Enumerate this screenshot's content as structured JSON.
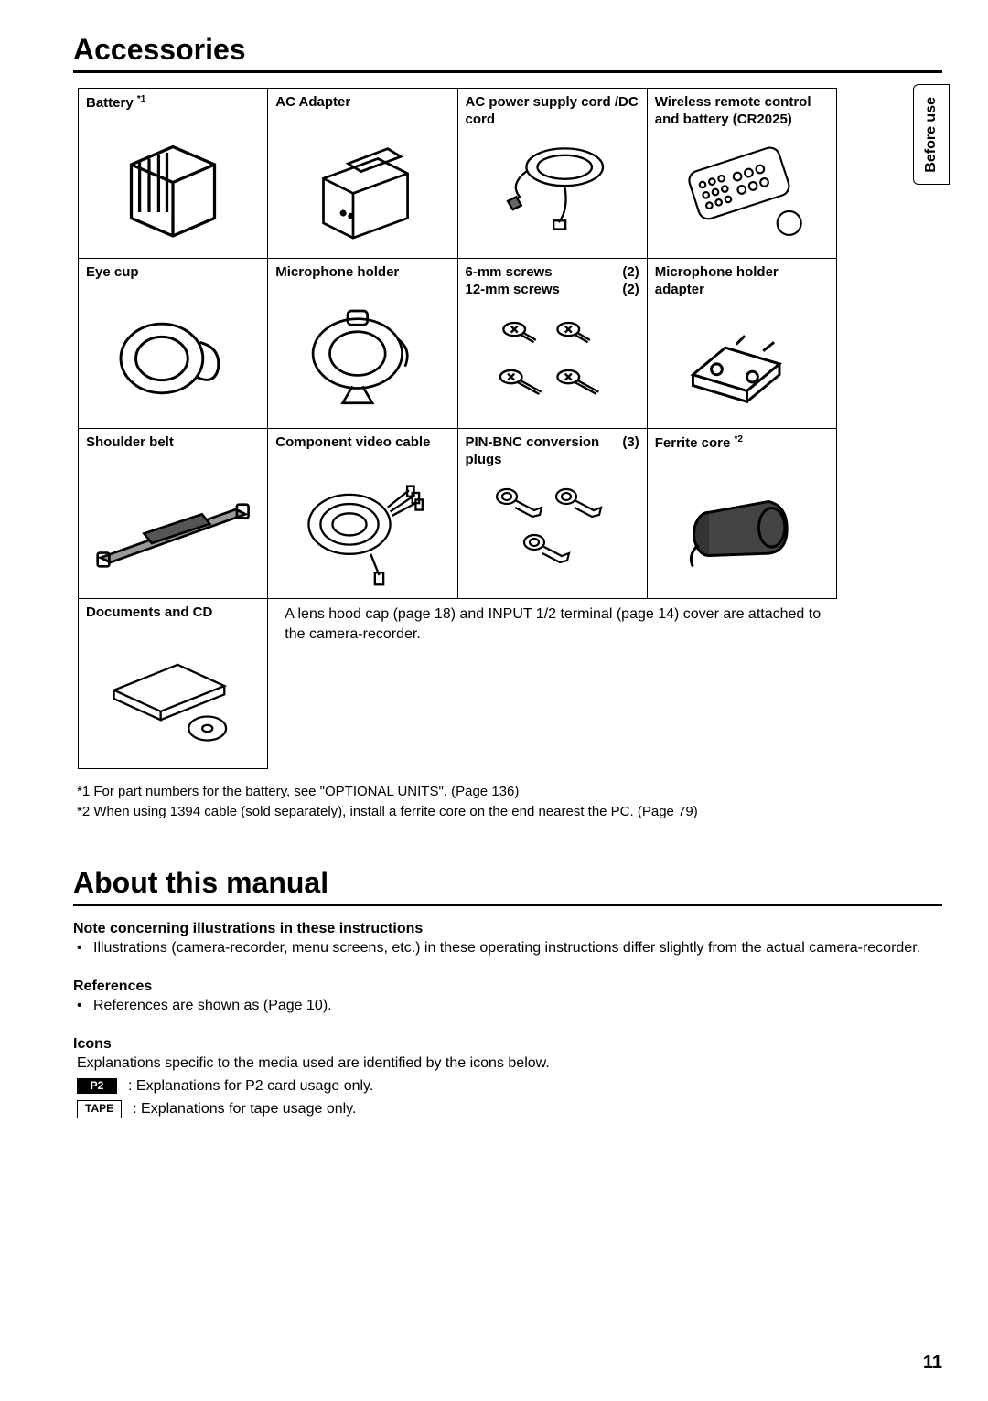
{
  "side_tab": "Before use",
  "section1_title": "Accessories",
  "grid": {
    "r1": [
      {
        "label_html": "Battery <sup>*1</sup>"
      },
      {
        "label_html": "AC Adapter"
      },
      {
        "label_html": "AC power supply cord /DC cord"
      },
      {
        "label_html": "Wireless remote control and battery (CR2025)"
      }
    ],
    "r2": [
      {
        "label_html": "Eye cup"
      },
      {
        "label_html": "Microphone holder"
      },
      {
        "label_html": "<div class='qty-row'><span>6-mm screws</span><span>(2)</span></div><div class='qty-row'><span>12-mm screws</span><span>(2)</span></div>"
      },
      {
        "label_html": "Microphone holder adapter"
      }
    ],
    "r3": [
      {
        "label_html": "Shoulder belt"
      },
      {
        "label_html": "Component video cable"
      },
      {
        "label_html": "<div class='qty-row'><span>PIN-BNC conversion plugs</span><span>(3)</span></div>"
      },
      {
        "label_html": "Ferrite core <sup>*2</sup>"
      }
    ],
    "r4_label": "Documents and CD",
    "r4_note": "A lens hood cap (page 18) and INPUT 1/2 terminal (page 14) cover are attached to the camera-recorder."
  },
  "footnotes": [
    "*1 For part numbers for the battery, see \"OPTIONAL UNITS\". (Page 136)",
    "*2 When using 1394 cable (sold separately), install a ferrite core on the end nearest the PC. (Page 79)"
  ],
  "section2_title": "About this manual",
  "about": {
    "sub1": "Note concerning illustrations in these instructions",
    "sub1_body": "Illustrations (camera-recorder, menu screens, etc.) in these operating instructions differ slightly from the actual camera-recorder.",
    "sub2": "References",
    "sub2_body": "References are shown as (Page 10).",
    "sub3": "Icons",
    "sub3_intro": "Explanations specific to the media used are identified by the icons below.",
    "icon_p2": "P2",
    "icon_p2_text": ": Explanations for P2 card usage only.",
    "icon_tape": "TAPE",
    "icon_tape_text": ": Explanations for tape usage only."
  },
  "page_number": "11"
}
